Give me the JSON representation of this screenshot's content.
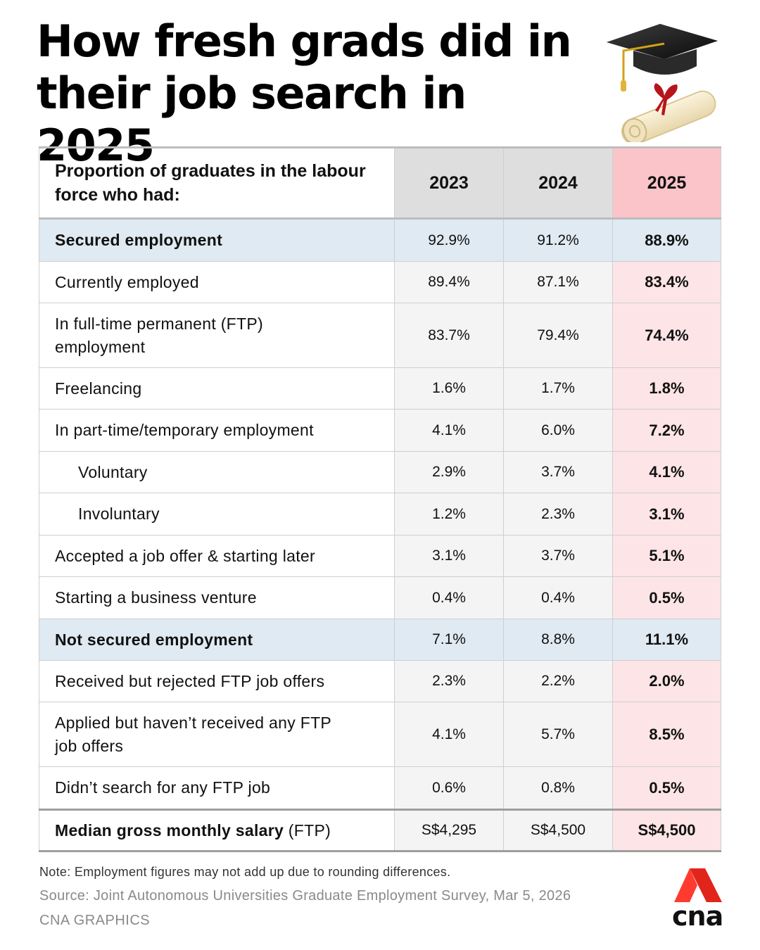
{
  "title": {
    "line1": "How fresh grads did in",
    "line2": "their job search in 2025"
  },
  "table": {
    "header": {
      "label": "Proportion of graduates in the labour force who had:",
      "years": [
        "2023",
        "2024",
        "2025"
      ]
    },
    "rows": [
      {
        "label": "Secured employment",
        "v2023": "92.9%",
        "v2024": "91.2%",
        "v2025": "88.9%"
      },
      {
        "label": "Currently employed",
        "v2023": "89.4%",
        "v2024": "87.1%",
        "v2025": "83.4%"
      },
      {
        "label": "In full-time permanent (FTP) employment",
        "v2023": "83.7%",
        "v2024": "79.4%",
        "v2025": "74.4%"
      },
      {
        "label": "Freelancing",
        "v2023": "1.6%",
        "v2024": "1.7%",
        "v2025": "1.8%"
      },
      {
        "label": "In part-time/temporary employment",
        "v2023": "4.1%",
        "v2024": "6.0%",
        "v2025": "7.2%"
      },
      {
        "label": "Voluntary",
        "v2023": "2.9%",
        "v2024": "3.7%",
        "v2025": "4.1%"
      },
      {
        "label": "Involuntary",
        "v2023": "1.2%",
        "v2024": "2.3%",
        "v2025": "3.1%"
      },
      {
        "label": "Accepted a job offer & starting later",
        "v2023": "3.1%",
        "v2024": "3.7%",
        "v2025": "5.1%"
      },
      {
        "label": "Starting a business venture",
        "v2023": "0.4%",
        "v2024": "0.4%",
        "v2025": "0.5%"
      },
      {
        "label": "Not secured employment",
        "v2023": "7.1%",
        "v2024": "8.8%",
        "v2025": "11.1%"
      },
      {
        "label": "Received but rejected FTP job offers",
        "v2023": "2.3%",
        "v2024": "2.2%",
        "v2025": "2.0%"
      },
      {
        "label": "Applied but haven’t received any FTP job offers",
        "v2023": "4.1%",
        "v2024": "5.7%",
        "v2025": "8.5%"
      },
      {
        "label": "Didn’t search for any FTP job",
        "v2023": "0.6%",
        "v2024": "0.8%",
        "v2025": "0.5%"
      }
    ],
    "median": {
      "label_bold": "Median gross monthly salary",
      "label_suffix": "(FTP)",
      "v2023": "S$4,295",
      "v2024": "S$4,500",
      "v2025": "S$4,500"
    }
  },
  "footer": {
    "note": "Note: Employment figures may not add up due to rounding differences.",
    "source": "Source: Joint Autonomous Universities Graduate Employment Survey, Mar 5, 2026",
    "credit": "CNA GRAPHICS",
    "logo_text": "cna"
  },
  "colors": {
    "accent": "#e1251b",
    "header_2025": "#fbc4c8",
    "col_2025": "#fde4e6",
    "section_row": "#dfeaf2"
  }
}
